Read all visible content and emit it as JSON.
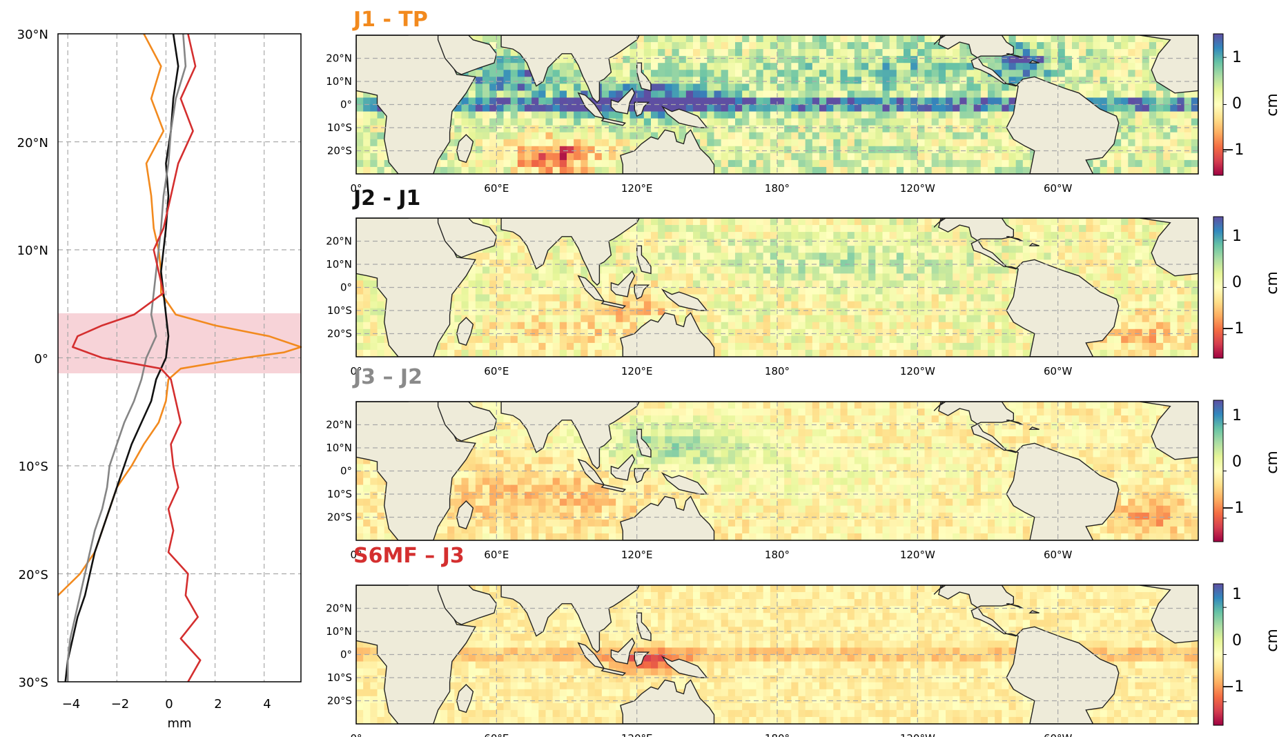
{
  "profile_panel": {
    "xlabel": "mm",
    "xticks": [
      "−4",
      "−2",
      "0",
      "2",
      "4"
    ],
    "yticks": [
      "30°N",
      "20°N",
      "10°N",
      "0°",
      "10°S",
      "20°S",
      "30°S"
    ]
  },
  "map_panels": [
    {
      "title": "J1 - TP",
      "title_color": "#f28a1e"
    },
    {
      "title": "J2 - J1",
      "title_color": "#111111"
    },
    {
      "title": "J3 – J2",
      "title_color": "#8a8a8a"
    },
    {
      "title": "S6MF – J3",
      "title_color": "#d42f2f"
    }
  ],
  "map_axes": {
    "lon_ticks": [
      "0°",
      "60°E",
      "120°E",
      "180°",
      "120°W",
      "60°W"
    ],
    "lat_ticks": [
      "20°N",
      "10°N",
      "0°",
      "10°S",
      "20°S"
    ]
  },
  "colorbar": {
    "unit": "cm",
    "ticks": [
      "1",
      "0",
      "−1"
    ],
    "colormap": "Spectral",
    "range": [
      -1.5,
      1.5
    ]
  },
  "chart_data": [
    {
      "type": "line",
      "orientation": "horizontal-profile",
      "xlabel": "mm",
      "ylabel": "",
      "xlim": [
        -4.4,
        5.5
      ],
      "ylim": [
        -30,
        30
      ],
      "grid": true,
      "highlight_band_lat": [
        -1.5,
        4
      ],
      "series": [
        {
          "color": "#f28a1e",
          "lat": [
            30,
            27,
            24,
            21,
            18,
            15,
            12,
            10,
            8,
            6,
            4,
            3,
            2,
            1,
            0.5,
            0,
            -1,
            -2,
            -4,
            -6,
            -8,
            -10,
            -12,
            -14,
            -16,
            -18,
            -20,
            -22
          ],
          "values": [
            -0.9,
            -0.2,
            -0.6,
            -0.1,
            -0.8,
            -0.6,
            -0.5,
            -0.3,
            -0.2,
            -0.2,
            0.4,
            2.0,
            4.2,
            5.5,
            4.8,
            3.2,
            0.6,
            0.1,
            0.0,
            -0.3,
            -0.9,
            -1.4,
            -2.0,
            -2.3,
            -2.6,
            -2.9,
            -3.5,
            -4.4
          ]
        },
        {
          "color": "#111111",
          "lat": [
            30,
            27,
            24,
            21,
            18,
            15,
            12,
            10,
            8,
            6,
            4,
            2,
            0,
            -2,
            -4,
            -6,
            -8,
            -10,
            -12,
            -14,
            -16,
            -18,
            -20,
            -22,
            -24,
            -26,
            -28,
            -30
          ],
          "values": [
            0.3,
            0.5,
            0.3,
            0.2,
            0.0,
            0.1,
            0.0,
            -0.1,
            -0.2,
            -0.1,
            0.0,
            0.1,
            0.0,
            -0.4,
            -0.6,
            -1.0,
            -1.4,
            -1.7,
            -2.0,
            -2.3,
            -2.6,
            -2.9,
            -3.1,
            -3.3,
            -3.6,
            -3.8,
            -4.0,
            -4.1
          ]
        },
        {
          "color": "#858585",
          "lat": [
            30,
            27,
            24,
            21,
            18,
            15,
            12,
            10,
            8,
            6,
            4,
            2,
            0,
            -2,
            -4,
            -6,
            -8,
            -10,
            -12,
            -14,
            -16,
            -18,
            -20,
            -22,
            -24,
            -26,
            -28,
            -30
          ],
          "values": [
            0.7,
            0.8,
            0.4,
            0.2,
            0.1,
            -0.1,
            -0.2,
            -0.3,
            -0.4,
            -0.5,
            -0.6,
            -0.4,
            -0.8,
            -1.0,
            -1.3,
            -1.7,
            -2.0,
            -2.3,
            -2.4,
            -2.6,
            -2.9,
            -3.1,
            -3.3,
            -3.5,
            -3.7,
            -3.9,
            -4.0,
            -4.0
          ]
        },
        {
          "color": "#d42f2f",
          "lat": [
            30,
            27,
            24,
            21,
            18,
            15,
            12,
            10,
            8,
            6,
            4,
            3,
            2,
            1,
            0,
            -1,
            -2,
            -4,
            -6,
            -8,
            -10,
            -12,
            -14,
            -16,
            -18,
            -20,
            -22,
            -24,
            -26,
            -28,
            -30
          ],
          "values": [
            0.9,
            1.2,
            0.6,
            1.1,
            0.5,
            0.2,
            -0.1,
            -0.5,
            -0.3,
            -0.1,
            -1.3,
            -2.6,
            -3.6,
            -3.8,
            -2.6,
            -0.2,
            0.2,
            0.4,
            0.6,
            0.2,
            0.3,
            0.5,
            0.1,
            0.3,
            0.1,
            0.9,
            0.8,
            1.3,
            0.6,
            1.4,
            0.9
          ]
        }
      ]
    },
    {
      "type": "heatmap",
      "title": "J1 - TP",
      "lon_range": [
        0,
        360
      ],
      "lat_range": [
        -30,
        30
      ],
      "colorbar_label": "cm",
      "zlim": [
        -1.5,
        1.5
      ],
      "regions": [
        {
          "area": "equatorial band",
          "value": 1.2
        },
        {
          "area": "western Pacific / Indonesia",
          "value": 1.5
        },
        {
          "area": "north-west Indian Ocean",
          "value": 1.0
        },
        {
          "area": "Caribbean",
          "value": 1.4
        },
        {
          "area": "central north Pacific",
          "value": 0.5
        },
        {
          "area": "south-east Indian Ocean",
          "value": -0.8
        },
        {
          "area": "south Pacific",
          "value": 0.2
        }
      ]
    },
    {
      "type": "heatmap",
      "title": "J2 - J1",
      "lon_range": [
        0,
        360
      ],
      "lat_range": [
        -30,
        30
      ],
      "colorbar_label": "cm",
      "zlim": [
        -1.5,
        1.5
      ],
      "regions": [
        {
          "area": "north Pacific",
          "value": 0.4
        },
        {
          "area": "Indonesian seas",
          "value": -0.5
        },
        {
          "area": "south Atlantic",
          "value": -0.5
        },
        {
          "area": "south Indian Ocean",
          "value": -0.3
        }
      ]
    },
    {
      "type": "heatmap",
      "title": "J3 – J2",
      "lon_range": [
        0,
        360
      ],
      "lat_range": [
        -30,
        30
      ],
      "colorbar_label": "cm",
      "zlim": [
        -1.5,
        1.5
      ],
      "regions": [
        {
          "area": "western Pacific",
          "value": 0.5
        },
        {
          "area": "Indian Ocean",
          "value": -0.4
        },
        {
          "area": "south Atlantic",
          "value": -0.6
        },
        {
          "area": "north Atlantic",
          "value": -0.2
        }
      ]
    },
    {
      "type": "heatmap",
      "title": "S6MF – J3",
      "lon_range": [
        0,
        360
      ],
      "lat_range": [
        -30,
        30
      ],
      "colorbar_label": "cm",
      "zlim": [
        -1.5,
        1.5
      ],
      "regions": [
        {
          "area": "equatorial band",
          "value": -0.6
        },
        {
          "area": "Indonesian seas",
          "value": -0.9
        },
        {
          "area": "open ocean",
          "value": -0.2
        }
      ]
    }
  ]
}
